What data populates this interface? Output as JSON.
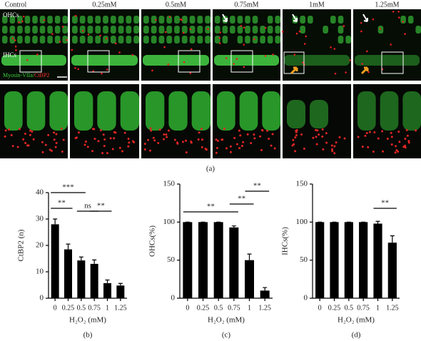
{
  "microscopy": {
    "columns": [
      "Control",
      "0.25mM",
      "0.5mM",
      "0.75mM",
      "1mM",
      "1.25mM"
    ],
    "row_labels": [
      "OHCs",
      "IHCs"
    ],
    "stain_labels": [
      "Myosin-VIIa/",
      "CtBP2"
    ],
    "label": "(a)"
  },
  "chart_data": [
    {
      "type": "bar",
      "label": "(b)",
      "y_label": "CtBP2 (n)",
      "x_label": "H₂O₂ (mM)",
      "categories": [
        "0",
        "0.25",
        "0.5",
        "0.75",
        "1",
        "1.25"
      ],
      "values": [
        28,
        18.5,
        14.3,
        13,
        5.7,
        4.8
      ],
      "errors": [
        2,
        2,
        1.3,
        1.5,
        1.2,
        0.8
      ],
      "color": "#000000",
      "ylim": [
        0,
        40
      ],
      "yticks": [
        0,
        10,
        20,
        30,
        40
      ],
      "annotations": [
        {
          "text": "***",
          "span": [
            "0",
            "0.5"
          ]
        },
        {
          "text": "**",
          "span": [
            "0",
            "0.25"
          ]
        },
        {
          "text": "ns",
          "span": [
            "0.5",
            "0.75"
          ]
        },
        {
          "text": "**",
          "span": [
            "0.75",
            "1"
          ]
        }
      ]
    },
    {
      "type": "bar",
      "label": "(c)",
      "y_label": "OHCs(%)",
      "x_label": "H₂O₂ (mM)",
      "categories": [
        "0",
        "0.25",
        "0.5",
        "0.75",
        "1",
        "1.25"
      ],
      "values": [
        100,
        100,
        100,
        93,
        50,
        10
      ],
      "errors": [
        0,
        0,
        0,
        2,
        8,
        4
      ],
      "color": "#000000",
      "ylim": [
        0,
        150
      ],
      "yticks": [
        0,
        50,
        100,
        150
      ],
      "annotations": [
        {
          "text": "**",
          "span": [
            "0",
            "0.75"
          ]
        },
        {
          "text": "**",
          "span": [
            "0.75",
            "1"
          ]
        },
        {
          "text": "**",
          "span": [
            "1",
            "1.25"
          ]
        }
      ]
    },
    {
      "type": "bar",
      "label": "(d)",
      "y_label": "IHCs(%)",
      "x_label": "H₂O₂ (mM)",
      "categories": [
        "0",
        "0.25",
        "0.5",
        "0.75",
        "1",
        "1.25"
      ],
      "values": [
        100,
        100,
        100,
        100,
        98,
        73
      ],
      "errors": [
        0,
        0,
        0,
        0,
        3,
        9
      ],
      "color": "#000000",
      "ylim": [
        0,
        150
      ],
      "yticks": [
        0,
        50,
        100,
        150
      ],
      "annotations": [
        {
          "text": "**",
          "span": [
            "1",
            "1.25"
          ]
        }
      ]
    }
  ]
}
